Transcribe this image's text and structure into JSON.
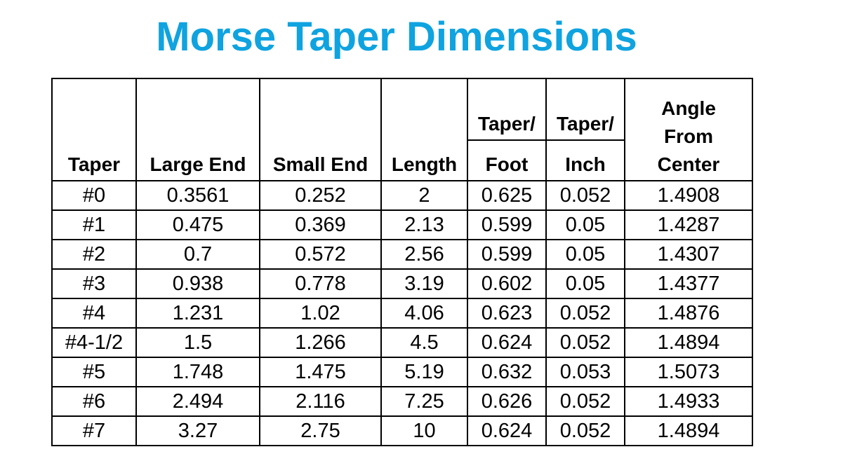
{
  "title": "Morse Taper Dimensions",
  "colors": {
    "title": "#0fa3e0",
    "grid": "#000000"
  },
  "headers": {
    "taper": "Taper",
    "large_end": "Large End",
    "small_end": "Small End",
    "length": "Length",
    "taper_foot_top": "Taper/",
    "taper_foot_bottom": "Foot",
    "taper_inch_top": "Taper/",
    "taper_inch_bottom": "Inch",
    "angle_1": "Angle",
    "angle_2": "From",
    "angle_3": "Center"
  },
  "rows": [
    [
      "#0",
      "0.3561",
      "0.252",
      "2",
      "0.625",
      "0.052",
      "1.4908"
    ],
    [
      "#1",
      "0.475",
      "0.369",
      "2.13",
      "0.599",
      "0.05",
      "1.4287"
    ],
    [
      "#2",
      "0.7",
      "0.572",
      "2.56",
      "0.599",
      "0.05",
      "1.4307"
    ],
    [
      "#3",
      "0.938",
      "0.778",
      "3.19",
      "0.602",
      "0.05",
      "1.4377"
    ],
    [
      "#4",
      "1.231",
      "1.02",
      "4.06",
      "0.623",
      "0.052",
      "1.4876"
    ],
    [
      "#4-1/2",
      "1.5",
      "1.266",
      "4.5",
      "0.624",
      "0.052",
      "1.4894"
    ],
    [
      "#5",
      "1.748",
      "1.475",
      "5.19",
      "0.632",
      "0.053",
      "1.5073"
    ],
    [
      "#6",
      "2.494",
      "2.116",
      "7.25",
      "0.626",
      "0.052",
      "1.4933"
    ],
    [
      "#7",
      "3.27",
      "2.75",
      "10",
      "0.624",
      "0.052",
      "1.4894"
    ]
  ]
}
